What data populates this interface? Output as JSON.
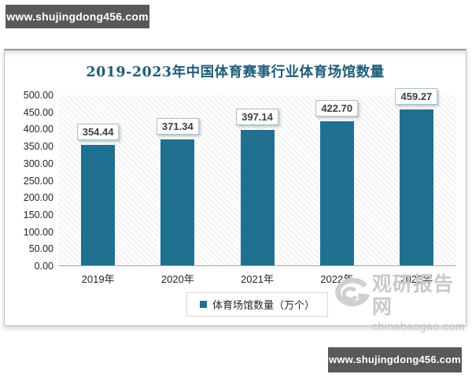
{
  "banners": {
    "top": {
      "text": "www.shujingdong456.com"
    },
    "bottom": {
      "text": "www.shujingdong456.com"
    }
  },
  "brand_watermark": {
    "name": "观研报告网",
    "domain": "chinabaogao.com"
  },
  "chart_data": {
    "type": "bar",
    "title": "2019-2023年中国体育赛事行业体育场馆数量",
    "categories": [
      "2019年",
      "2020年",
      "2021年",
      "2022年",
      "2023年"
    ],
    "series": [
      {
        "name": "体育场馆数量（万个）",
        "values": [
          354.44,
          371.34,
          397.14,
          422.7,
          459.27
        ]
      }
    ],
    "value_labels": [
      "354.44",
      "371.34",
      "397.14",
      "422.70",
      "459.27"
    ],
    "xlabel": "",
    "ylabel": "",
    "ylim": [
      0,
      500
    ],
    "y_tick_step": 50,
    "y_tick_labels": [
      "500.00",
      "450.00",
      "400.00",
      "350.00",
      "300.00",
      "250.00",
      "200.00",
      "150.00",
      "100.00",
      "50.00",
      "0.00"
    ],
    "legend_position": "bottom",
    "grid": false,
    "colors": {
      "bar": "#20718f",
      "title": "#1f5c7a",
      "label_box_border": "#a7c0cc",
      "watermark_gray": "#c9c9c9",
      "banner_bg": "#58595b"
    }
  }
}
